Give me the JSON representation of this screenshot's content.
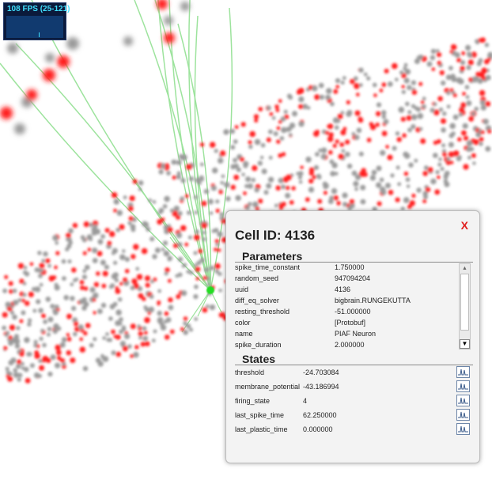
{
  "fps_meter": {
    "text": "108 FPS (25-121)"
  },
  "close_label": "X",
  "cell": {
    "title": "Cell ID: 4136"
  },
  "parameters": {
    "title": "Parameters",
    "rows": [
      {
        "key": "spike_time_constant",
        "value": "1.750000"
      },
      {
        "key": "random_seed",
        "value": "947094204"
      },
      {
        "key": "uuid",
        "value": "4136"
      },
      {
        "key": "diff_eq_solver",
        "value": "bigbrain.RUNGEKUTTA"
      },
      {
        "key": "resting_threshold",
        "value": "-51.000000"
      },
      {
        "key": "color",
        "value": "[Protobuf]"
      },
      {
        "key": "name",
        "value": "PIAF Neuron"
      },
      {
        "key": "spike_duration",
        "value": "2.000000"
      }
    ]
  },
  "states": {
    "title": "States",
    "rows": [
      {
        "key": "threshold",
        "value": "-24.703084"
      },
      {
        "key": "membrane_potential",
        "value": "-43.186994"
      },
      {
        "key": "firing_state",
        "value": "4"
      },
      {
        "key": "last_spike_time",
        "value": "62.250000"
      },
      {
        "key": "last_plastic_time",
        "value": "0.000000"
      }
    ]
  },
  "colors": {
    "active_neuron": "#ff1a1a",
    "inactive_neuron": "#9a9a9a",
    "selected_neuron": "#22dd22",
    "connection": "#9de39d",
    "close": "#e02020",
    "fps_text": "#40e0ff"
  },
  "icons": {
    "close": "close-icon",
    "plot": "plot-icon"
  }
}
